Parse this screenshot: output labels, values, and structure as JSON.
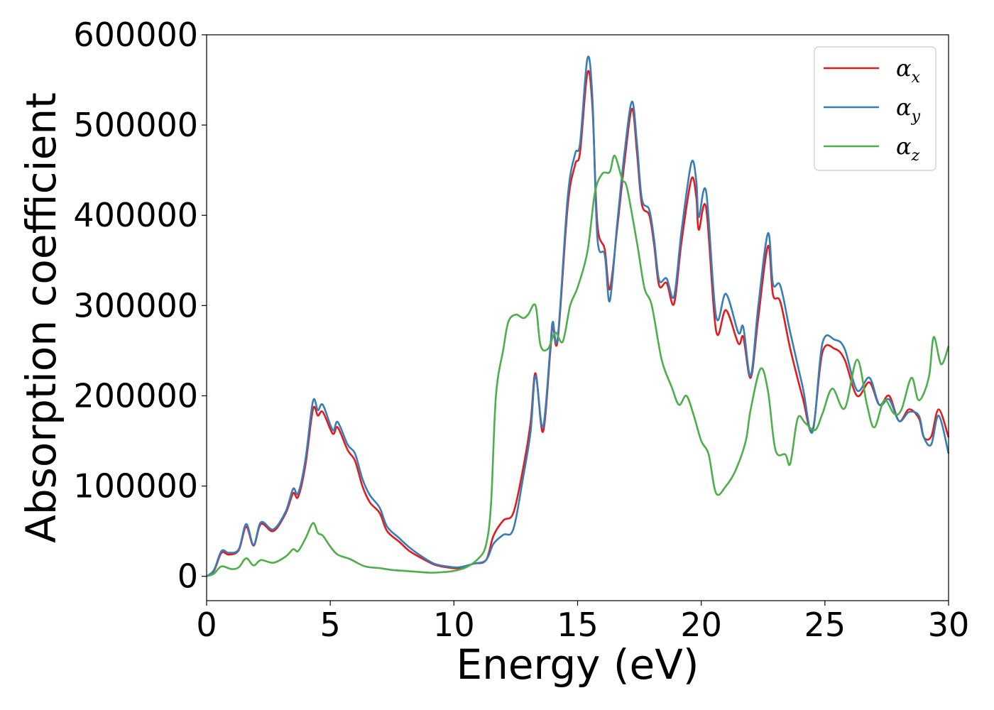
{
  "chart_data": {
    "type": "line",
    "xlabel": "Energy (eV)",
    "ylabel": "Absorption coefficient",
    "xlim": [
      0,
      30
    ],
    "ylim": [
      -27000,
      600000
    ],
    "xticks": [
      0,
      5,
      10,
      15,
      20,
      25,
      30
    ],
    "yticks": [
      0,
      100000,
      200000,
      300000,
      400000,
      500000,
      600000
    ],
    "legend_position": "top-right",
    "grid": false,
    "series": [
      {
        "name": "α",
        "subscript": "x",
        "color": "#e41a1c",
        "points": [
          [
            0,
            0
          ],
          [
            0.3,
            6000
          ],
          [
            0.6,
            26000
          ],
          [
            0.9,
            24000
          ],
          [
            1.3,
            29000
          ],
          [
            1.6,
            55000
          ],
          [
            1.9,
            34000
          ],
          [
            2.2,
            58000
          ],
          [
            2.7,
            50000
          ],
          [
            3.2,
            70000
          ],
          [
            3.5,
            92000
          ],
          [
            3.7,
            88000
          ],
          [
            4.0,
            124000
          ],
          [
            4.3,
            185000
          ],
          [
            4.5,
            178000
          ],
          [
            4.7,
            182000
          ],
          [
            5.1,
            158000
          ],
          [
            5.3,
            165000
          ],
          [
            5.7,
            140000
          ],
          [
            6.0,
            128000
          ],
          [
            6.3,
            100000
          ],
          [
            6.6,
            82000
          ],
          [
            7.0,
            70000
          ],
          [
            7.3,
            50000
          ],
          [
            7.8,
            38000
          ],
          [
            8.2,
            28000
          ],
          [
            8.7,
            20000
          ],
          [
            9.2,
            13000
          ],
          [
            9.7,
            10000
          ],
          [
            10.2,
            9000
          ],
          [
            10.8,
            14000
          ],
          [
            11.3,
            18000
          ],
          [
            11.6,
            45000
          ],
          [
            12.0,
            62000
          ],
          [
            12.4,
            70000
          ],
          [
            12.8,
            120000
          ],
          [
            13.1,
            170000
          ],
          [
            13.3,
            225000
          ],
          [
            13.6,
            160000
          ],
          [
            13.9,
            250000
          ],
          [
            14.0,
            278000
          ],
          [
            14.2,
            262000
          ],
          [
            14.6,
            410000
          ],
          [
            14.9,
            456000
          ],
          [
            15.1,
            470000
          ],
          [
            15.4,
            558000
          ],
          [
            15.6,
            520000
          ],
          [
            15.8,
            390000
          ],
          [
            16.1,
            362000
          ],
          [
            16.3,
            318000
          ],
          [
            16.6,
            385000
          ],
          [
            16.9,
            460000
          ],
          [
            17.2,
            518000
          ],
          [
            17.4,
            470000
          ],
          [
            17.6,
            412000
          ],
          [
            17.9,
            400000
          ],
          [
            18.1,
            366000
          ],
          [
            18.3,
            322000
          ],
          [
            18.6,
            325000
          ],
          [
            18.9,
            302000
          ],
          [
            19.2,
            370000
          ],
          [
            19.6,
            440000
          ],
          [
            19.8,
            420000
          ],
          [
            19.9,
            384000
          ],
          [
            20.2,
            408000
          ],
          [
            20.6,
            272000
          ],
          [
            21.0,
            295000
          ],
          [
            21.5,
            258000
          ],
          [
            21.7,
            265000
          ],
          [
            22.0,
            220000
          ],
          [
            22.3,
            285000
          ],
          [
            22.7,
            366000
          ],
          [
            22.9,
            312000
          ],
          [
            23.2,
            304000
          ],
          [
            23.6,
            252000
          ],
          [
            24.1,
            198000
          ],
          [
            24.5,
            162000
          ],
          [
            24.9,
            248000
          ],
          [
            25.4,
            252000
          ],
          [
            25.8,
            240000
          ],
          [
            26.3,
            200000
          ],
          [
            26.8,
            215000
          ],
          [
            27.2,
            190000
          ],
          [
            27.6,
            200000
          ],
          [
            28.0,
            172000
          ],
          [
            28.4,
            185000
          ],
          [
            28.8,
            175000
          ],
          [
            29.0,
            154000
          ],
          [
            29.3,
            155000
          ],
          [
            29.6,
            185000
          ],
          [
            30.0,
            154000
          ]
        ]
      },
      {
        "name": "α",
        "subscript": "y",
        "color": "#377eb8",
        "points": [
          [
            0,
            0
          ],
          [
            0.3,
            7000
          ],
          [
            0.6,
            28000
          ],
          [
            0.9,
            26000
          ],
          [
            1.3,
            30000
          ],
          [
            1.6,
            58000
          ],
          [
            1.9,
            35000
          ],
          [
            2.2,
            60000
          ],
          [
            2.7,
            52000
          ],
          [
            3.2,
            72000
          ],
          [
            3.5,
            97000
          ],
          [
            3.7,
            92000
          ],
          [
            4.0,
            130000
          ],
          [
            4.3,
            194000
          ],
          [
            4.5,
            184000
          ],
          [
            4.7,
            190000
          ],
          [
            5.1,
            162000
          ],
          [
            5.3,
            171000
          ],
          [
            5.7,
            146000
          ],
          [
            6.0,
            136000
          ],
          [
            6.3,
            108000
          ],
          [
            6.6,
            90000
          ],
          [
            7.0,
            76000
          ],
          [
            7.3,
            55000
          ],
          [
            7.8,
            42000
          ],
          [
            8.2,
            32000
          ],
          [
            8.7,
            22000
          ],
          [
            9.2,
            14000
          ],
          [
            9.7,
            11000
          ],
          [
            10.2,
            10000
          ],
          [
            10.8,
            14000
          ],
          [
            11.3,
            18000
          ],
          [
            11.6,
            36000
          ],
          [
            12.0,
            46000
          ],
          [
            12.4,
            52000
          ],
          [
            12.8,
            110000
          ],
          [
            13.1,
            160000
          ],
          [
            13.3,
            222000
          ],
          [
            13.6,
            165000
          ],
          [
            13.9,
            255000
          ],
          [
            14.0,
            282000
          ],
          [
            14.2,
            265000
          ],
          [
            14.6,
            420000
          ],
          [
            14.9,
            468000
          ],
          [
            15.1,
            480000
          ],
          [
            15.4,
            574000
          ],
          [
            15.6,
            530000
          ],
          [
            15.8,
            375000
          ],
          [
            16.1,
            356000
          ],
          [
            16.3,
            305000
          ],
          [
            16.6,
            390000
          ],
          [
            16.9,
            470000
          ],
          [
            17.2,
            526000
          ],
          [
            17.4,
            480000
          ],
          [
            17.6,
            418000
          ],
          [
            17.9,
            406000
          ],
          [
            18.1,
            372000
          ],
          [
            18.3,
            328000
          ],
          [
            18.6,
            330000
          ],
          [
            18.9,
            310000
          ],
          [
            19.2,
            382000
          ],
          [
            19.6,
            458000
          ],
          [
            19.8,
            438000
          ],
          [
            19.9,
            398000
          ],
          [
            20.2,
            426000
          ],
          [
            20.6,
            288000
          ],
          [
            21.0,
            313000
          ],
          [
            21.5,
            270000
          ],
          [
            21.7,
            276000
          ],
          [
            22.0,
            222000
          ],
          [
            22.3,
            298000
          ],
          [
            22.7,
            380000
          ],
          [
            22.9,
            324000
          ],
          [
            23.2,
            322000
          ],
          [
            23.6,
            270000
          ],
          [
            24.1,
            210000
          ],
          [
            24.5,
            160000
          ],
          [
            24.9,
            258000
          ],
          [
            25.4,
            262000
          ],
          [
            25.8,
            252000
          ],
          [
            26.3,
            206000
          ],
          [
            26.8,
            220000
          ],
          [
            27.2,
            190000
          ],
          [
            27.6,
            196000
          ],
          [
            28.0,
            172000
          ],
          [
            28.4,
            182000
          ],
          [
            28.8,
            178000
          ],
          [
            29.0,
            154000
          ],
          [
            29.3,
            146000
          ],
          [
            29.6,
            178000
          ],
          [
            30.0,
            136000
          ]
        ]
      },
      {
        "name": "α",
        "subscript": "z",
        "color": "#4daf4a",
        "points": [
          [
            0,
            0
          ],
          [
            0.3,
            3000
          ],
          [
            0.6,
            11000
          ],
          [
            1.0,
            8000
          ],
          [
            1.3,
            10000
          ],
          [
            1.6,
            20000
          ],
          [
            1.9,
            12000
          ],
          [
            2.2,
            18000
          ],
          [
            2.7,
            15000
          ],
          [
            3.2,
            22000
          ],
          [
            3.5,
            30000
          ],
          [
            3.7,
            28000
          ],
          [
            4.0,
            42000
          ],
          [
            4.3,
            59000
          ],
          [
            4.5,
            48000
          ],
          [
            4.7,
            45000
          ],
          [
            5.0,
            33000
          ],
          [
            5.3,
            24000
          ],
          [
            5.8,
            19000
          ],
          [
            6.3,
            12000
          ],
          [
            6.6,
            10000
          ],
          [
            7.0,
            9000
          ],
          [
            7.5,
            7000
          ],
          [
            8.0,
            6000
          ],
          [
            8.5,
            5000
          ],
          [
            9.0,
            4000
          ],
          [
            9.5,
            4500
          ],
          [
            10.0,
            6000
          ],
          [
            10.5,
            10000
          ],
          [
            11.0,
            20000
          ],
          [
            11.3,
            35000
          ],
          [
            11.5,
            80000
          ],
          [
            11.7,
            200000
          ],
          [
            12.0,
            252000
          ],
          [
            12.2,
            282000
          ],
          [
            12.5,
            290000
          ],
          [
            12.8,
            286000
          ],
          [
            13.0,
            290000
          ],
          [
            13.3,
            300000
          ],
          [
            13.5,
            256000
          ],
          [
            13.8,
            252000
          ],
          [
            14.1,
            270000
          ],
          [
            14.4,
            260000
          ],
          [
            14.7,
            300000
          ],
          [
            15.0,
            320000
          ],
          [
            15.4,
            360000
          ],
          [
            15.7,
            425000
          ],
          [
            16.0,
            446000
          ],
          [
            16.3,
            448000
          ],
          [
            16.5,
            466000
          ],
          [
            16.8,
            440000
          ],
          [
            17.0,
            430000
          ],
          [
            17.4,
            370000
          ],
          [
            17.7,
            320000
          ],
          [
            18.0,
            300000
          ],
          [
            18.4,
            240000
          ],
          [
            18.8,
            210000
          ],
          [
            19.1,
            190000
          ],
          [
            19.4,
            200000
          ],
          [
            19.7,
            178000
          ],
          [
            20.0,
            150000
          ],
          [
            20.3,
            135000
          ],
          [
            20.6,
            92000
          ],
          [
            21.0,
            100000
          ],
          [
            21.4,
            118000
          ],
          [
            21.8,
            150000
          ],
          [
            22.0,
            185000
          ],
          [
            22.4,
            230000
          ],
          [
            22.7,
            205000
          ],
          [
            23.0,
            140000
          ],
          [
            23.4,
            135000
          ],
          [
            23.6,
            125000
          ],
          [
            23.9,
            175000
          ],
          [
            24.2,
            170000
          ],
          [
            24.6,
            162000
          ],
          [
            24.9,
            180000
          ],
          [
            25.3,
            208000
          ],
          [
            25.8,
            186000
          ],
          [
            26.3,
            240000
          ],
          [
            26.7,
            190000
          ],
          [
            27.0,
            165000
          ],
          [
            27.4,
            195000
          ],
          [
            27.8,
            180000
          ],
          [
            28.1,
            185000
          ],
          [
            28.5,
            220000
          ],
          [
            28.8,
            195000
          ],
          [
            29.2,
            220000
          ],
          [
            29.4,
            265000
          ],
          [
            29.7,
            235000
          ],
          [
            30.0,
            255000
          ]
        ]
      }
    ]
  }
}
